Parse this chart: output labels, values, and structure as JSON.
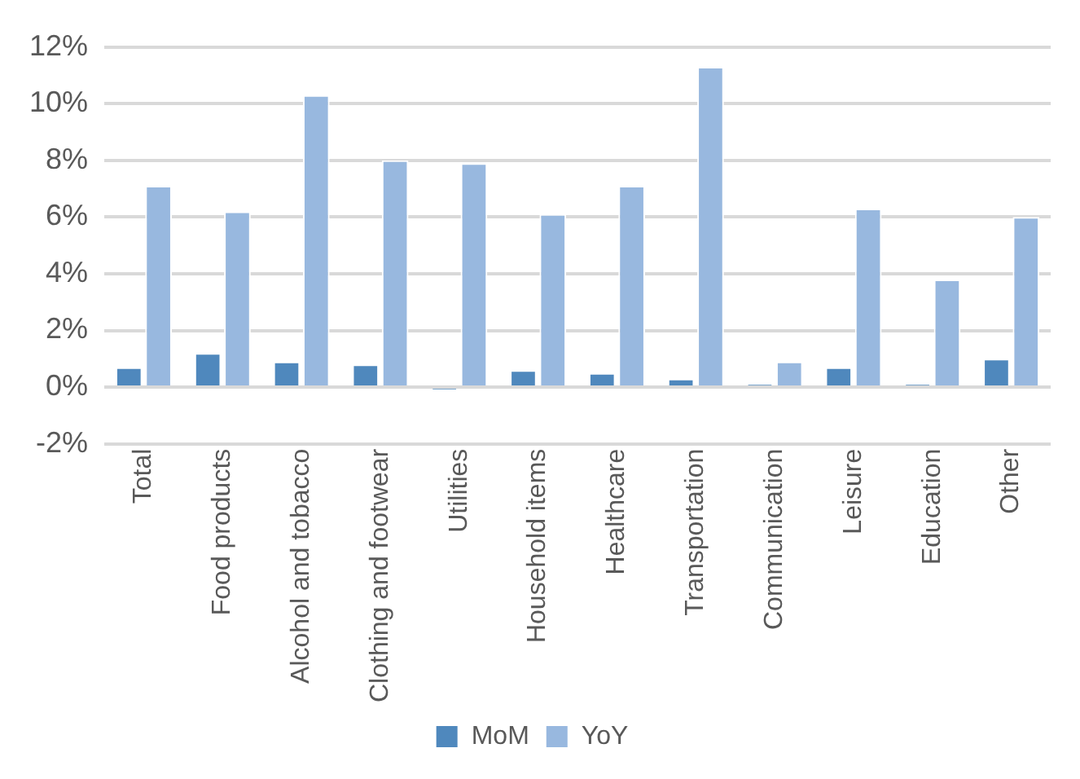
{
  "chart_data": {
    "type": "bar",
    "categories": [
      "Total",
      "Food products",
      "Alcohol and tobacco",
      "Clothing and footwear",
      "Utilities",
      "Household items",
      "Healthcare",
      "Transportation",
      "Communication",
      "Leisure",
      "Education",
      "Other"
    ],
    "series": [
      {
        "name": "MoM",
        "color": "#4f88bd",
        "values": [
          0.7,
          1.2,
          0.9,
          0.8,
          -0.1,
          0.6,
          0.5,
          0.3,
          0.1,
          0.7,
          0.1,
          1.0
        ]
      },
      {
        "name": "YoY",
        "color": "#98b8df",
        "values": [
          7.1,
          6.2,
          10.3,
          8.0,
          7.9,
          6.1,
          7.1,
          11.3,
          0.9,
          6.3,
          3.8,
          6.0
        ]
      }
    ],
    "ylim": [
      -2,
      12
    ],
    "yticks": [
      {
        "value": -2,
        "label": "-2%"
      },
      {
        "value": 0,
        "label": "0%"
      },
      {
        "value": 2,
        "label": "2%"
      },
      {
        "value": 4,
        "label": "4%"
      },
      {
        "value": 6,
        "label": "6%"
      },
      {
        "value": 8,
        "label": "8%"
      },
      {
        "value": 10,
        "label": "10%"
      },
      {
        "value": 12,
        "label": "12%"
      }
    ],
    "grid": "y",
    "legend": "bottom"
  }
}
